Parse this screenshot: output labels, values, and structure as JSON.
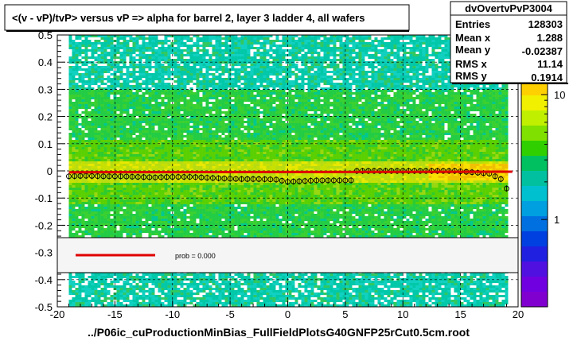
{
  "title": "<(v - vP)/tvP> versus   vP => alpha for barrel 2, layer 3 ladder 4, all wafers",
  "stats": {
    "name": "dvOvertvPvP3004",
    "rows": [
      {
        "label": "Entries",
        "value": "128303"
      },
      {
        "label": "Mean x",
        "value": "1.288"
      },
      {
        "label": "Mean y",
        "value": "-0.02387"
      },
      {
        "label": "RMS x",
        "value": "11.14"
      },
      {
        "label": "RMS y",
        "value": "0.1914"
      }
    ]
  },
  "legend": {
    "entry": "prob = 0.000"
  },
  "footer": "../P06ic_cuProductionMinBias_FullFieldPlotsG40GNFP25rCut0.5cm.root",
  "colors": {
    "fit_line": "#e00000",
    "marker": "#000000",
    "frame": "#000000"
  },
  "chart_data": {
    "type": "heatmap",
    "xlim": [
      -20,
      20
    ],
    "ylim": [
      -0.5,
      0.5
    ],
    "x_ticks": [
      -20,
      -15,
      -10,
      -5,
      0,
      5,
      10,
      15,
      20
    ],
    "x_tick_labels": [
      "-20",
      "-15",
      "-10",
      "-5",
      "0",
      "5",
      "10",
      "15",
      "20"
    ],
    "y_ticks": [
      -0.5,
      -0.4,
      -0.3,
      -0.2,
      -0.1,
      0,
      0.1,
      0.2,
      0.3,
      0.4,
      0.5
    ],
    "y_tick_labels": [
      "-0.5",
      "-0.4",
      "-0.3",
      "-0.2",
      "-0.1",
      "0",
      "0.1",
      "0.2",
      "0.3",
      "0.4",
      "0.5"
    ],
    "grid": true,
    "colorbar": {
      "scale": "log",
      "tick_values": [
        1,
        10
      ],
      "tick_labels": [
        "1",
        "10"
      ],
      "range": [
        0.2,
        30
      ]
    },
    "data_x_range": [
      -19,
      19
    ],
    "profile": {
      "x": [
        -19,
        -17.5,
        -16,
        -14.5,
        -13,
        -11.5,
        -10,
        -8.5,
        -7,
        -5.5,
        -4,
        -2.5,
        -1,
        0,
        1,
        2.5,
        4,
        5.5,
        6,
        7,
        8.5,
        10,
        11.5,
        13,
        14.5,
        16,
        17.5,
        18.5,
        19
      ],
      "y": [
        -0.02,
        -0.018,
        -0.02,
        -0.02,
        -0.022,
        -0.024,
        -0.022,
        -0.022,
        -0.025,
        -0.028,
        -0.03,
        -0.03,
        -0.032,
        -0.04,
        -0.038,
        -0.035,
        -0.035,
        -0.035,
        0,
        0,
        0,
        0,
        0,
        0,
        0,
        -0.005,
        -0.01,
        -0.03,
        -0.065
      ]
    },
    "fit": {
      "x": [
        -19,
        19.5
      ],
      "y": [
        -0.005,
        -0.003
      ]
    },
    "fit_label": "prob = 0.000"
  }
}
